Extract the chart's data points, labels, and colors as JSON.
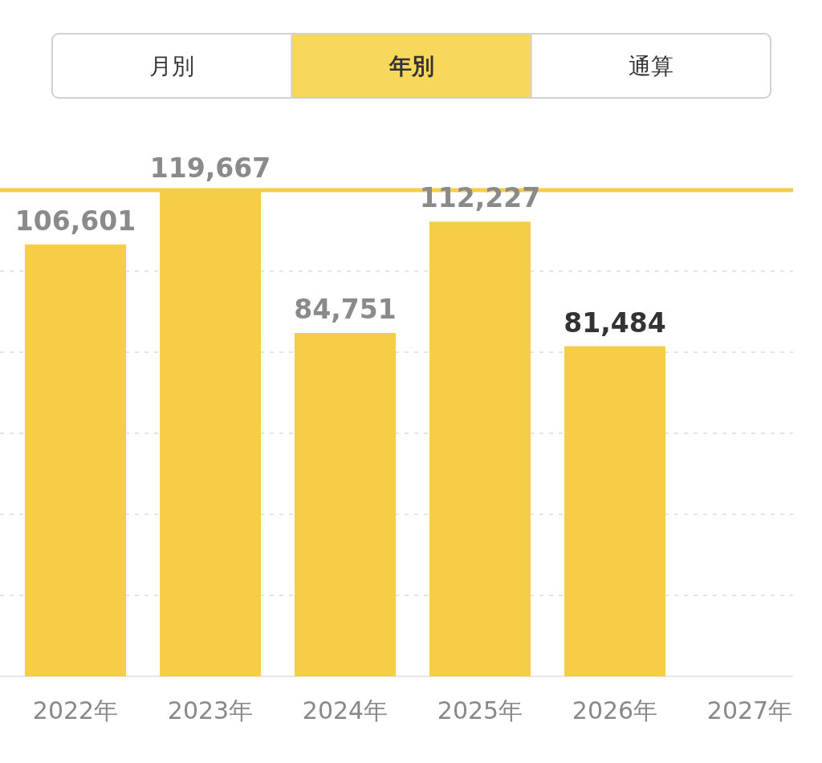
{
  "chart_data": {
    "type": "bar",
    "annotations": [
      "月別",
      "年別",
      "通算"
    ],
    "categories": [
      "2022年",
      "2023年",
      "2024年",
      "2025年",
      "2026年",
      "2027年"
    ],
    "values": [
      106601,
      119667,
      84751,
      112227,
      81484,
      null
    ],
    "color": "#f5cd46",
    "value_labels": [
      "106,601",
      "119,667",
      "84,751",
      "112,227",
      "81,484",
      null
    ],
    "tick_labels": "x",
    "ref_lines": [
      {
        "axis": "y",
        "value": 20000,
        "color": "#e4e4e4",
        "line_style": "dotted"
      },
      {
        "axis": "y",
        "value": 40000,
        "color": "#e4e4e4",
        "line_style": "dotted"
      },
      {
        "axis": "y",
        "value": 60000,
        "color": "#e4e4e4",
        "line_style": "dotted"
      },
      {
        "axis": "y",
        "value": 80000,
        "color": "#e4e4e4",
        "line_style": "dotted"
      },
      {
        "axis": "y",
        "value": 100000,
        "color": "#e4e4e4",
        "line_style": "dotted"
      },
      {
        "axis": "y",
        "value": 120000,
        "color": "#f5cd46",
        "line_style": "solid"
      }
    ]
  }
}
